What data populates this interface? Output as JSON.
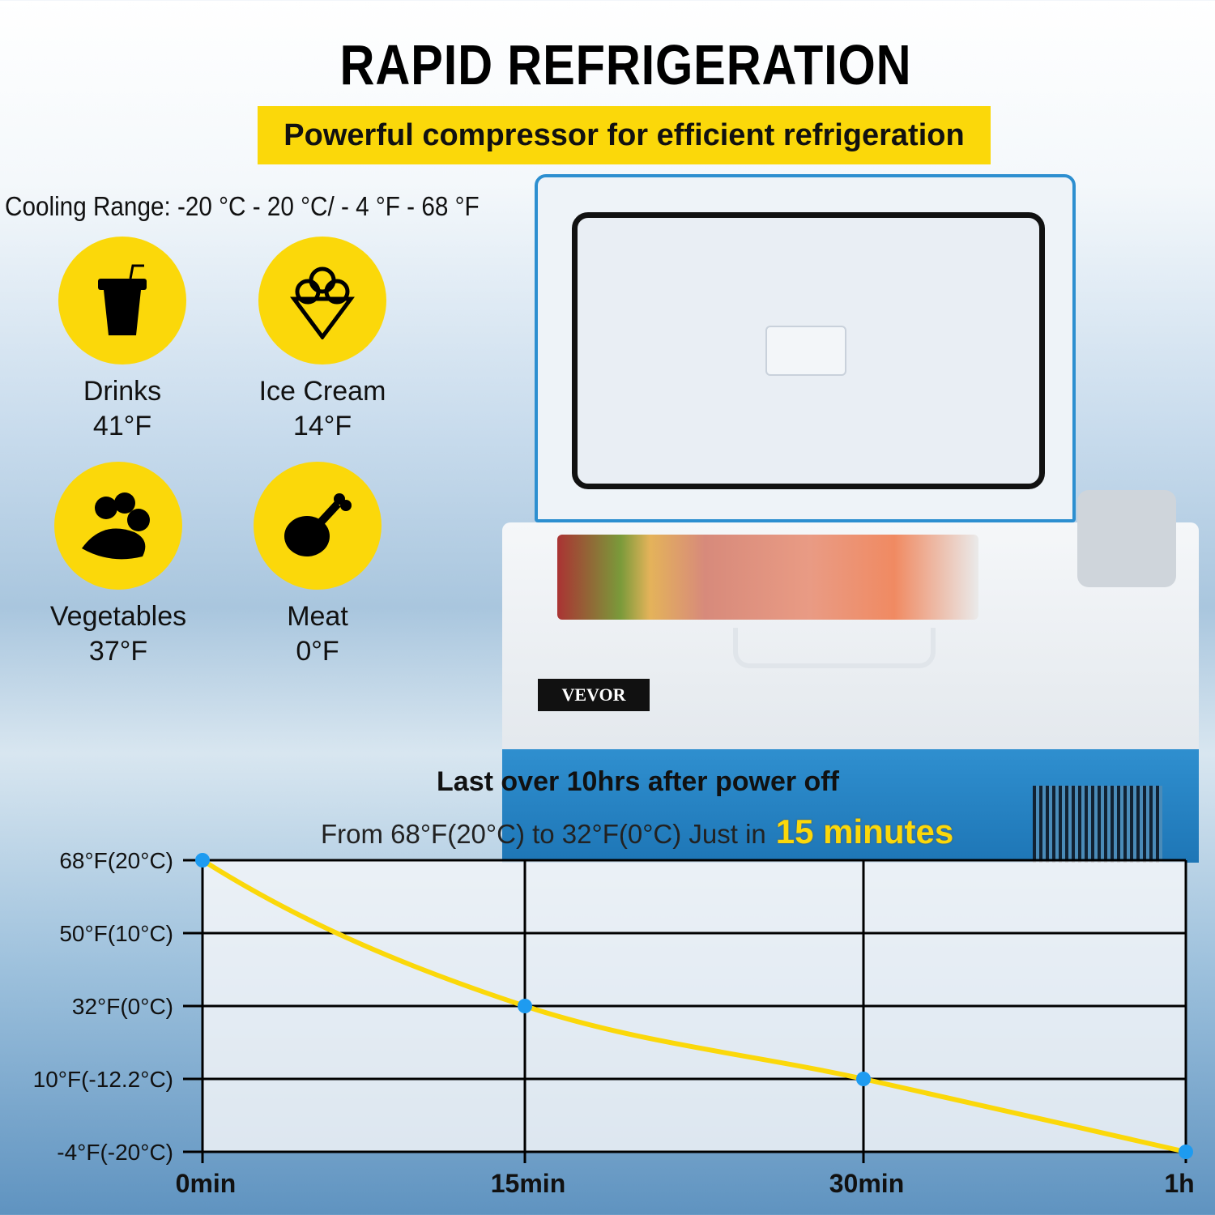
{
  "header": {
    "title": "RAPID REFRIGERATION",
    "subtitle": "Powerful compressor for efficient refrigeration"
  },
  "cooling_range": "Cooling Range: -20 °C - 20 °C/ - 4 °F - 68 °F",
  "categories": [
    {
      "name": "Drinks",
      "temp": "41°F",
      "icon": "drink-cup-icon"
    },
    {
      "name": "Ice Cream",
      "temp": "14°F",
      "icon": "ice-cream-icon"
    },
    {
      "name": "Vegetables",
      "temp": "37°F",
      "icon": "vegetables-icon"
    },
    {
      "name": "Meat",
      "temp": "0°F",
      "icon": "chicken-leg-icon"
    }
  ],
  "product": {
    "brand": "VEVOR"
  },
  "chart_header": {
    "line1": "Last over 10hrs after power off",
    "line2": "From 68°F(20°C) to 32°F(0°C) Just in",
    "highlight": "15 minutes"
  },
  "colors": {
    "accent": "#fbd80a",
    "point": "#1e9bf0",
    "body": "#2f8fcf"
  },
  "chart_data": {
    "type": "line",
    "categories": [
      "0min",
      "15min",
      "30min",
      "1h"
    ],
    "y_tick_labels": [
      "68°F(20°C)",
      "50°F(10°C)",
      "32°F(0°C)",
      "10°F(-12.2°C)",
      "-4°F(-20°C)"
    ],
    "y_tick_values": [
      68,
      50,
      32,
      10,
      -4
    ],
    "values": [
      68,
      32,
      10,
      -4
    ],
    "y_unit": "°F",
    "grid": true,
    "line_color": "#fbd80a",
    "marker_color": "#1e9bf0"
  }
}
